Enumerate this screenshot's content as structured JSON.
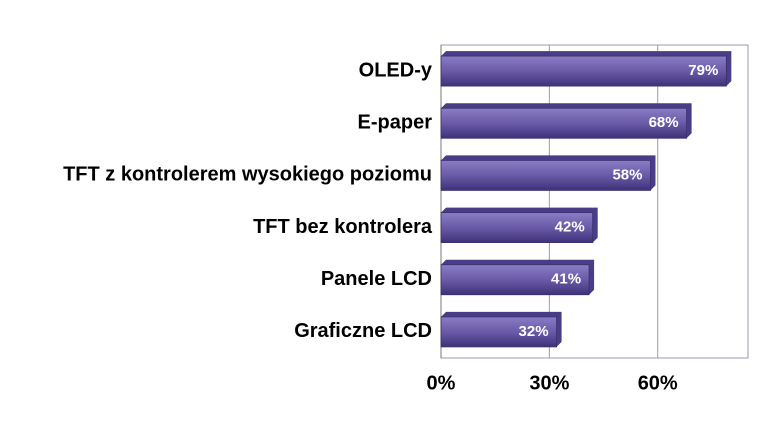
{
  "chart_data": {
    "type": "bar",
    "orientation": "horizontal",
    "categories": [
      "OLED-y",
      "E-paper",
      "TFT z kontrolerem wysokiego poziomu",
      "TFT bez kontrolera",
      "Panele LCD",
      "Graficzne LCD"
    ],
    "values": [
      79,
      68,
      58,
      42,
      41,
      32
    ],
    "value_labels": [
      "79%",
      "68%",
      "58%",
      "42%",
      "41%",
      "32%"
    ],
    "color": "#6a5aa8",
    "xlim": [
      0,
      85
    ],
    "xticks": [
      {
        "value": 0,
        "label": "0%"
      },
      {
        "value": 30,
        "label": "30%"
      },
      {
        "value": 60,
        "label": "60%"
      }
    ],
    "grid": true
  }
}
